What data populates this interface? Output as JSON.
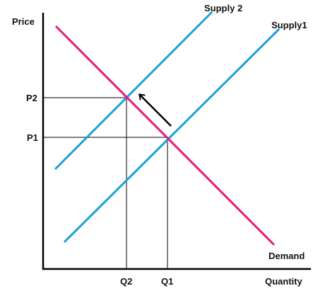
{
  "axes": {
    "y_label": "Price",
    "x_label": "Quantity"
  },
  "curves": {
    "supply2_label": "Supply 2",
    "supply1_label": "Supply1",
    "demand_label": "Demand"
  },
  "ticks": {
    "p2": "P2",
    "p1": "P1",
    "q2": "Q2",
    "q1": "Q1"
  },
  "colors": {
    "supply": "#1E9FD8",
    "demand": "#E8197A",
    "axis": "#000000",
    "guide": "#000000"
  },
  "annotations": {
    "shift_arrow": "arrow-up-left-icon"
  }
}
